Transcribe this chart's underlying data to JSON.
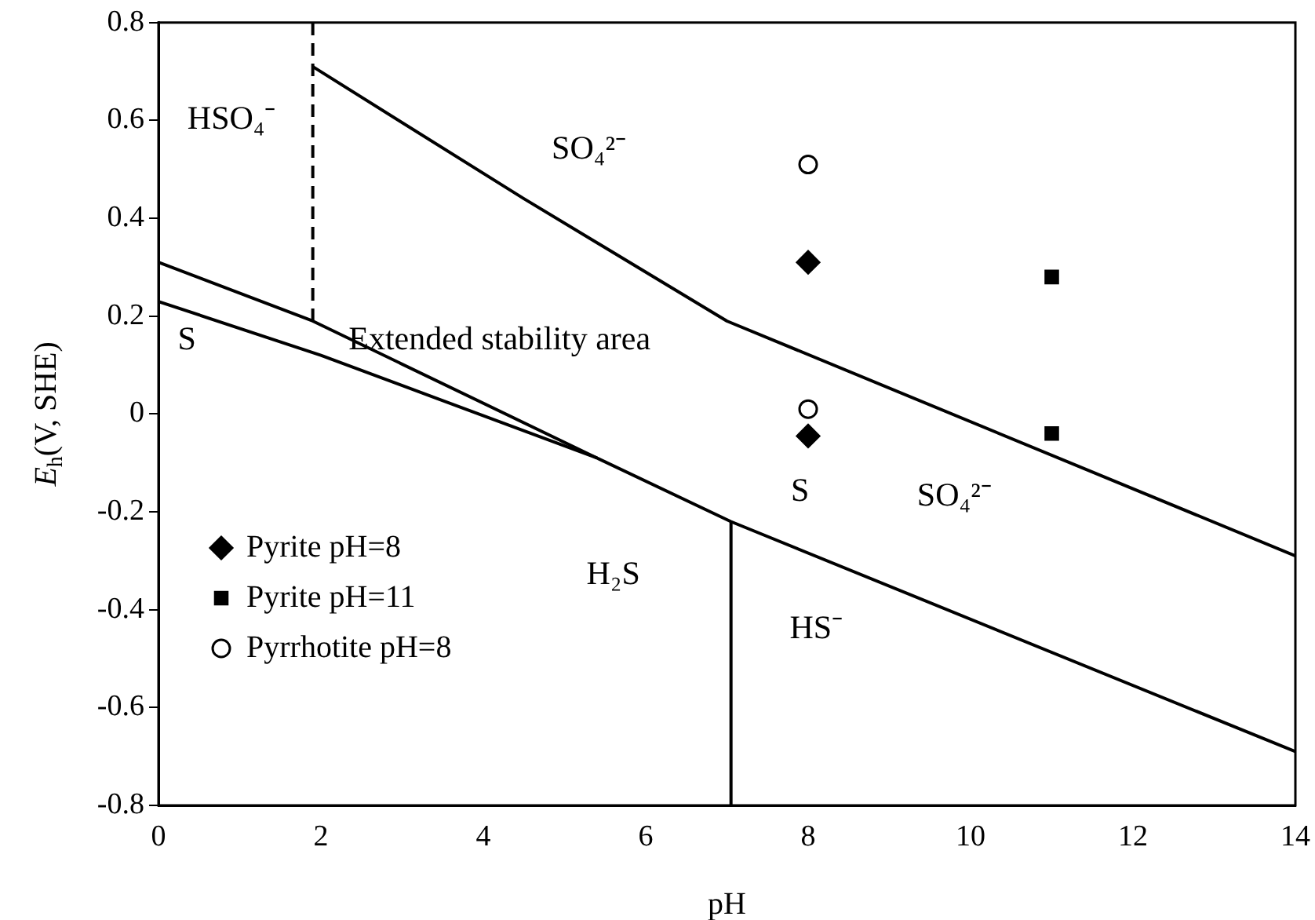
{
  "chart_data": {
    "type": "line",
    "xlabel": "pH",
    "ylabel": "E$_{h}$(V, SHE)",
    "xlim": [
      0,
      14
    ],
    "xticks": [
      0,
      2,
      4,
      6,
      8,
      10,
      12,
      14
    ],
    "ylim": [
      -0.8,
      0.8
    ],
    "yticks": [
      -0.8,
      -0.6,
      -0.4,
      -0.2,
      0,
      0.2,
      0.4,
      0.6,
      0.8
    ],
    "grid": false,
    "legend": "bottom left",
    "series": [
      {
        "color": "#000000",
        "line_style": "solid",
        "marker": "none",
        "x": [
          1.9,
          4.5,
          7,
          14
        ],
        "values": [
          0.71,
          0.44,
          0.19,
          -0.29
        ]
      },
      {
        "color": "#000000",
        "line_style": "solid",
        "marker": "none",
        "x": [
          0,
          1.9,
          5.4
        ],
        "values": [
          0.31,
          0.19,
          -0.09
        ]
      },
      {
        "color": "#000000",
        "line_style": "solid",
        "marker": "none",
        "x": [
          0,
          2,
          5.4,
          7.05,
          14
        ],
        "values": [
          0.23,
          0.12,
          -0.09,
          -0.22,
          -0.69
        ]
      },
      {
        "color": "#000000",
        "line_style": "dashed",
        "marker": "none",
        "x": [
          1.9,
          1.9
        ],
        "values": [
          0.19,
          0.8
        ]
      },
      {
        "color": "#000000",
        "line_style": "solid",
        "marker": "none",
        "x": [
          7.05,
          7.05
        ],
        "values": [
          -0.8,
          -0.22
        ]
      },
      {
        "type": "scatter",
        "name": "Pyrite pH=8",
        "color": "#000000",
        "marker": "diamond",
        "x": [
          8,
          8
        ],
        "values": [
          0.31,
          -0.045
        ]
      },
      {
        "type": "scatter",
        "name": "Pyrite pH=11",
        "color": "#000000",
        "marker": "square",
        "x": [
          11,
          11
        ],
        "values": [
          0.28,
          -0.04
        ]
      },
      {
        "type": "scatter",
        "name": "Pyrrhotite pH=8",
        "color": "#000000",
        "marker": "circle",
        "x": [
          8,
          8
        ],
        "values": [
          0.51,
          0.01
        ]
      }
    ],
    "annotations": [
      "HSO₄⁻",
      "SO₄²⁻",
      "Extended stability area",
      "S",
      "S",
      "SO₄²⁻",
      "H₂S",
      "HS⁻"
    ]
  }
}
